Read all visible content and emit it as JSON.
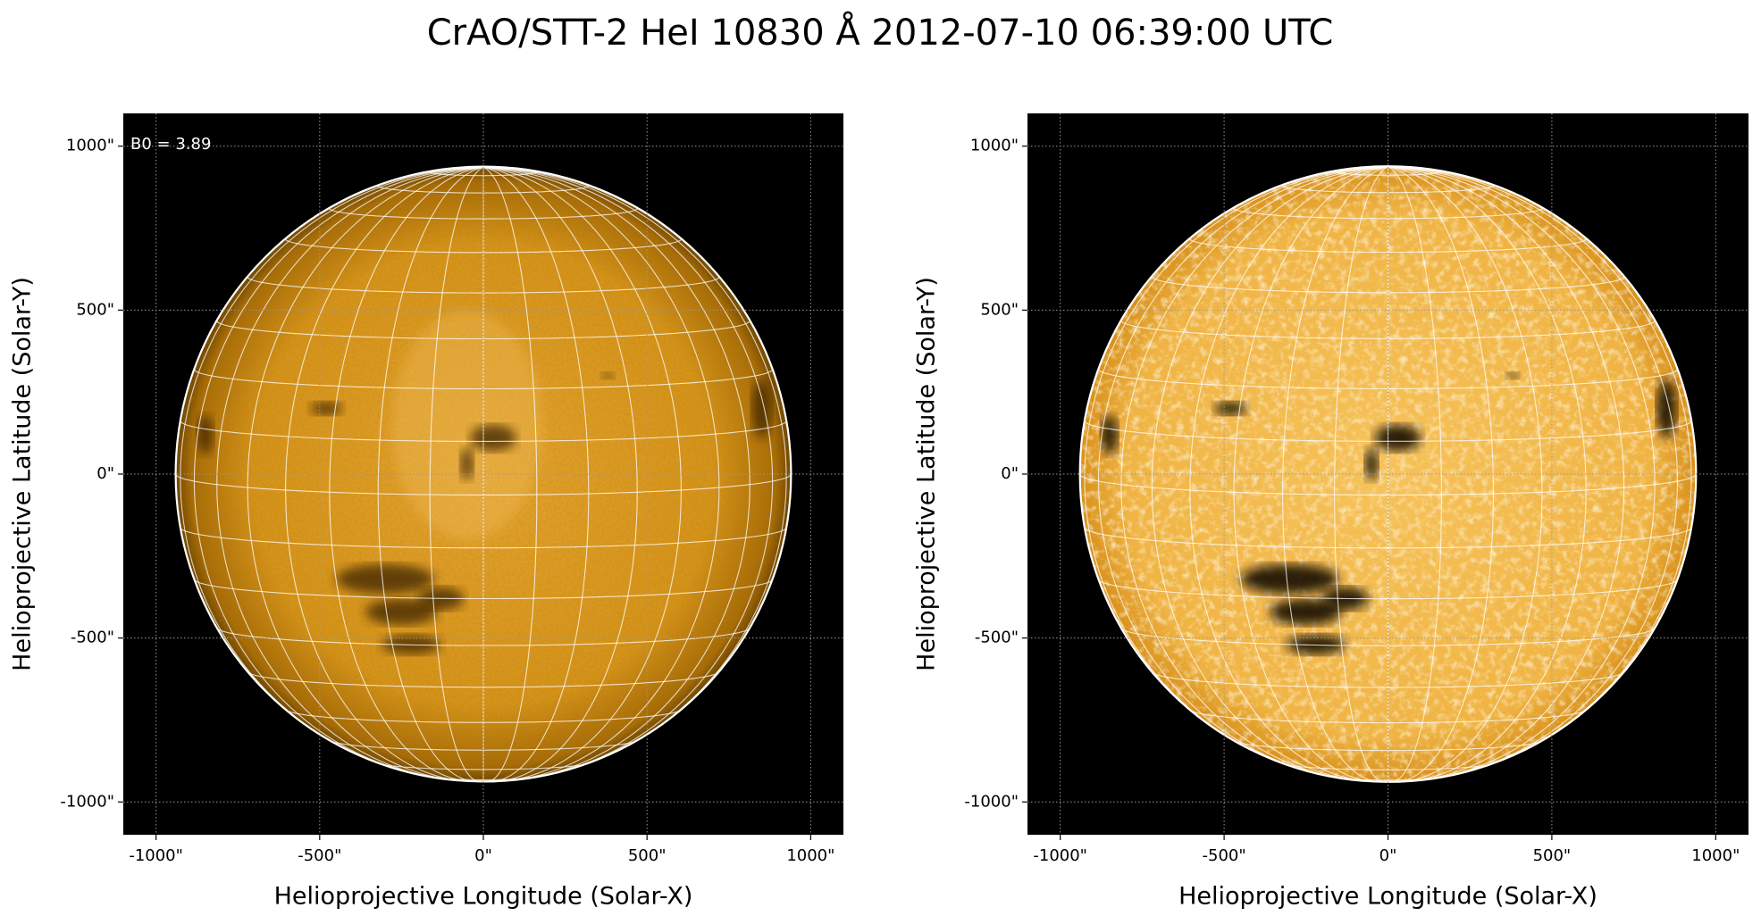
{
  "title": "CrAO/STT-2 HeI 10830 Å 2012-07-10 06:39:00 UTC",
  "chart_data": [
    {
      "type": "image",
      "style": "soft",
      "xlabel": "Helioprojective Longitude (Solar-X)",
      "ylabel": "Helioprojective Latitude (Solar-Y)",
      "annotation": "B0 = 3.89",
      "xlim": [
        -1100,
        1100
      ],
      "ylim": [
        -1100,
        1100
      ],
      "xticks": [
        {
          "value": -1000,
          "label": "-1000\""
        },
        {
          "value": -500,
          "label": "-500\""
        },
        {
          "value": 0,
          "label": "0\""
        },
        {
          "value": 500,
          "label": "500\""
        },
        {
          "value": 1000,
          "label": "1000\""
        }
      ],
      "yticks": [
        {
          "value": -1000,
          "label": "-1000\""
        },
        {
          "value": -500,
          "label": "-500\""
        },
        {
          "value": 0,
          "label": "0\""
        },
        {
          "value": 500,
          "label": "500\""
        },
        {
          "value": 1000,
          "label": "1000\""
        }
      ],
      "grid": true
    },
    {
      "type": "image",
      "style": "contrast",
      "xlabel": "Helioprojective Longitude (Solar-X)",
      "ylabel": "Helioprojective Latitude (Solar-Y)",
      "xlim": [
        -1100,
        1100
      ],
      "ylim": [
        -1100,
        1100
      ],
      "xticks": [
        {
          "value": -1000,
          "label": "-1000\""
        },
        {
          "value": -500,
          "label": "-500\""
        },
        {
          "value": 0,
          "label": "0\""
        },
        {
          "value": 500,
          "label": "500\""
        },
        {
          "value": 1000,
          "label": "1000\""
        }
      ],
      "yticks": [
        {
          "value": -1000,
          "label": "-1000\""
        },
        {
          "value": -500,
          "label": "-500\""
        },
        {
          "value": 0,
          "label": "0\""
        },
        {
          "value": 500,
          "label": "500\""
        },
        {
          "value": 1000,
          "label": "1000\""
        }
      ],
      "grid": true
    }
  ]
}
